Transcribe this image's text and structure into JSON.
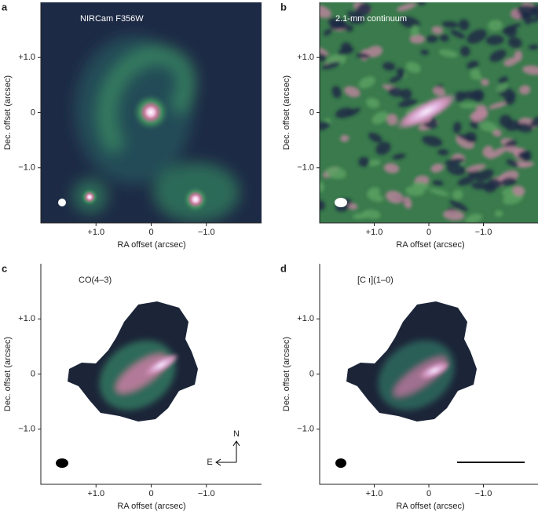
{
  "chart_data": [
    {
      "type": "image",
      "panel_label": "a",
      "annotation": "NIRCam F356W",
      "xlabel": "RA offset (arcsec)",
      "ylabel": "Dec. offset (arcsec)",
      "xlim": [
        2,
        -2
      ],
      "ylim": [
        -2,
        2
      ],
      "xticks": [
        {
          "value": 1,
          "label": "+1.0"
        },
        0,
        {
          "value": -1,
          "label": "−1.0"
        }
      ],
      "yticks": [
        {
          "value": 1,
          "label": "+1.0"
        },
        0,
        {
          "value": -1,
          "label": "−1.0"
        }
      ]
    },
    {
      "type": "image",
      "panel_label": "b",
      "annotation": "2.1-mm continuum",
      "xlabel": "RA offset (arcsec)",
      "ylabel": "Dec. offset (arcsec)",
      "xlim": [
        2,
        -2
      ],
      "ylim": [
        -2,
        2
      ],
      "xticks": [
        {
          "value": 1,
          "label": "+1.0"
        },
        0,
        {
          "value": -1,
          "label": "−1.0"
        }
      ],
      "yticks": [
        {
          "value": 1,
          "label": "+1.0"
        },
        0,
        {
          "value": -1,
          "label": "−1.0"
        }
      ]
    },
    {
      "type": "image",
      "panel_label": "c",
      "annotation": "CO(4–3)",
      "xlabel": "RA offset (arcsec)",
      "ylabel": "Dec. offset (arcsec)",
      "xlim": [
        2,
        -2
      ],
      "ylim": [
        -2,
        2
      ],
      "xticks": [
        {
          "value": 1,
          "label": "+1.0"
        },
        0,
        {
          "value": -1,
          "label": "−1.0"
        }
      ],
      "yticks": [
        {
          "value": 1,
          "label": "+1.0"
        },
        0,
        {
          "value": -1,
          "label": "−1.0"
        }
      ],
      "compass": {
        "north": "N",
        "east": "E"
      }
    },
    {
      "type": "image",
      "panel_label": "d",
      "annotation": "[C ı](1–0)",
      "xlabel": "RA offset (arcsec)",
      "ylabel": "Dec. offset (arcsec)",
      "xlim": [
        2,
        -2
      ],
      "ylim": [
        -2,
        2
      ],
      "xticks": [
        {
          "value": 1,
          "label": "+1.0"
        },
        0,
        {
          "value": -1,
          "label": "−1.0"
        }
      ],
      "yticks": [
        {
          "value": 1,
          "label": "+1.0"
        },
        0,
        {
          "value": -1,
          "label": "−1.0"
        }
      ]
    }
  ]
}
